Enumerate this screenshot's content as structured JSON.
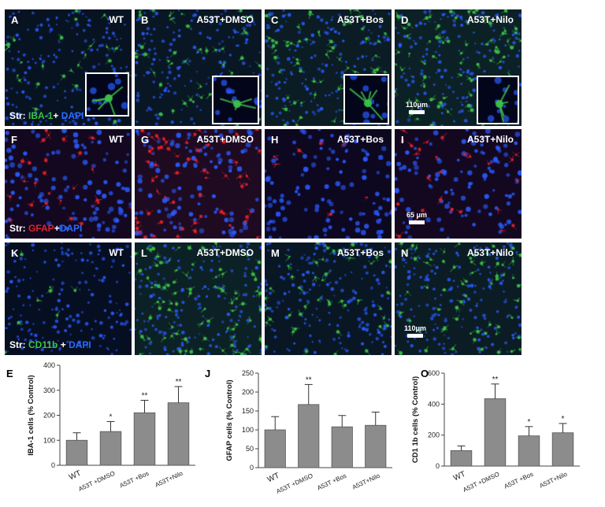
{
  "rows": [
    {
      "stain": {
        "prefix": "Str:",
        "marker": "IBA-1",
        "plus": "+",
        "dapi": "DAPI"
      },
      "marker_color": "#3cc24a",
      "scale_label": "110μm",
      "panels": [
        {
          "letter": "A",
          "condition": "WT"
        },
        {
          "letter": "B",
          "condition": "A53T+DMSO"
        },
        {
          "letter": "C",
          "condition": "A53T+Bos"
        },
        {
          "letter": "D",
          "condition": "A53T+Nilo"
        }
      ]
    },
    {
      "stain": {
        "prefix": "Str:",
        "marker": "GFAP",
        "plus": "+",
        "dapi": "DAPI"
      },
      "marker_color": "#e2232b",
      "scale_label": "65 μm",
      "panels": [
        {
          "letter": "F",
          "condition": "WT"
        },
        {
          "letter": "G",
          "condition": "A53T+DMSO"
        },
        {
          "letter": "H",
          "condition": "A53T+Bos"
        },
        {
          "letter": "I",
          "condition": "A53T+Nilo"
        }
      ]
    },
    {
      "stain": {
        "prefix": "Str:",
        "marker": "CD11b",
        "plus": "+",
        "dapi": "DAPI"
      },
      "marker_color": "#3cc24a",
      "scale_label": "110μm",
      "panels": [
        {
          "letter": "K",
          "condition": "WT"
        },
        {
          "letter": "L",
          "condition": "A53T+DMSO"
        },
        {
          "letter": "M",
          "condition": "A53T+Bos"
        },
        {
          "letter": "N",
          "condition": "A53T+Nilo"
        }
      ]
    }
  ],
  "colors": {
    "dapi": "#2a5bff",
    "bar_fill": "#8c8c8c"
  },
  "chart_data": [
    {
      "letter": "E",
      "type": "bar",
      "ylabel": "IBA-1 cells (% Control)",
      "categories": [
        "WT",
        "A53T +DMSO",
        "A53T +Bos",
        "A53T+Nilo"
      ],
      "values": [
        100,
        135,
        210,
        250
      ],
      "errors": [
        30,
        40,
        50,
        65
      ],
      "significance": [
        "",
        "*",
        "**",
        "**"
      ],
      "ylim": [
        0,
        400
      ],
      "yticks": [
        0,
        100,
        200,
        300,
        400
      ]
    },
    {
      "letter": "J",
      "type": "bar",
      "ylabel": "GFAP cells (% Control)",
      "categories": [
        "WT",
        "A53T +DMSO",
        "A53T +Bos",
        "A53T+Nilo"
      ],
      "values": [
        100,
        167,
        108,
        112
      ],
      "errors": [
        35,
        53,
        30,
        35
      ],
      "significance": [
        "",
        "**",
        "",
        ""
      ],
      "ylim": [
        0,
        250
      ],
      "yticks": [
        0,
        50,
        100,
        150,
        200,
        250
      ]
    },
    {
      "letter": "O",
      "type": "bar",
      "ylabel": "CD1 1b cells (% Control)",
      "categories": [
        "WT",
        "A53T +DMSO",
        "A53T +Bos",
        "A53T+Nilo"
      ],
      "values": [
        100,
        435,
        195,
        215
      ],
      "errors": [
        30,
        95,
        60,
        60
      ],
      "significance": [
        "",
        "**",
        "*",
        "*"
      ],
      "ylim": [
        0,
        600
      ],
      "yticks": [
        0,
        200,
        400,
        600
      ]
    }
  ]
}
